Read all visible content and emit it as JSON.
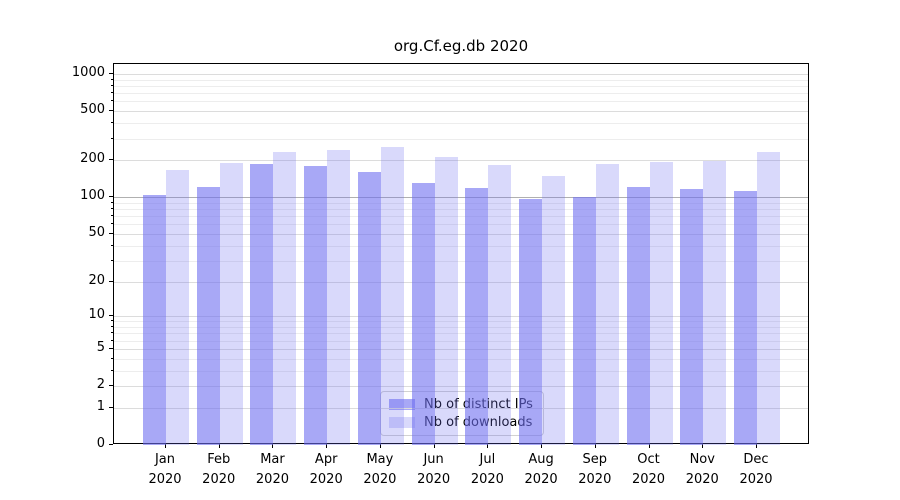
{
  "title": "org.Cf.eg.db 2020",
  "chart_data": {
    "type": "bar",
    "scale": "log1p",
    "title": "org.Cf.eg.db 2020",
    "categories": [
      "Jan 2020",
      "Feb 2020",
      "Mar 2020",
      "Apr 2020",
      "May 2020",
      "Jun 2020",
      "Jul 2020",
      "Aug 2020",
      "Sep 2020",
      "Oct 2020",
      "Nov 2020",
      "Dec 2020"
    ],
    "series": [
      {
        "name": "Nb of distinct IPs",
        "color": "rgba(110,110,240,0.60)",
        "values": [
          105,
          120,
          187,
          178,
          160,
          130,
          118,
          97,
          101,
          120,
          116,
          112
        ]
      },
      {
        "name": "Nb of downloads",
        "color": "rgba(110,110,240,0.26)",
        "values": [
          168,
          190,
          234,
          243,
          257,
          213,
          182,
          148,
          188,
          194,
          198,
          235
        ]
      }
    ],
    "xlabel": "",
    "ylabel": "",
    "ylim": [
      0,
      1206
    ],
    "y_ticks": [
      0,
      1,
      2,
      5,
      10,
      20,
      50,
      100,
      200,
      500,
      1000
    ],
    "y_minor_ticks": [
      3,
      4,
      6,
      7,
      8,
      9,
      30,
      40,
      60,
      70,
      80,
      90,
      300,
      400,
      600,
      700,
      800,
      900
    ],
    "grid": "on",
    "legend_position": "bottom-center",
    "colors": {
      "grid_minor": "#ededed",
      "grid_major": "#dcdcdc",
      "grid_emphasis_color": "#b0b0b0",
      "grid_emphasis_value": 100,
      "spine": "#000000",
      "bar_dark": "rgba(110,110,240,0.60)",
      "bar_light": "rgba(110,110,240,0.26)"
    }
  }
}
